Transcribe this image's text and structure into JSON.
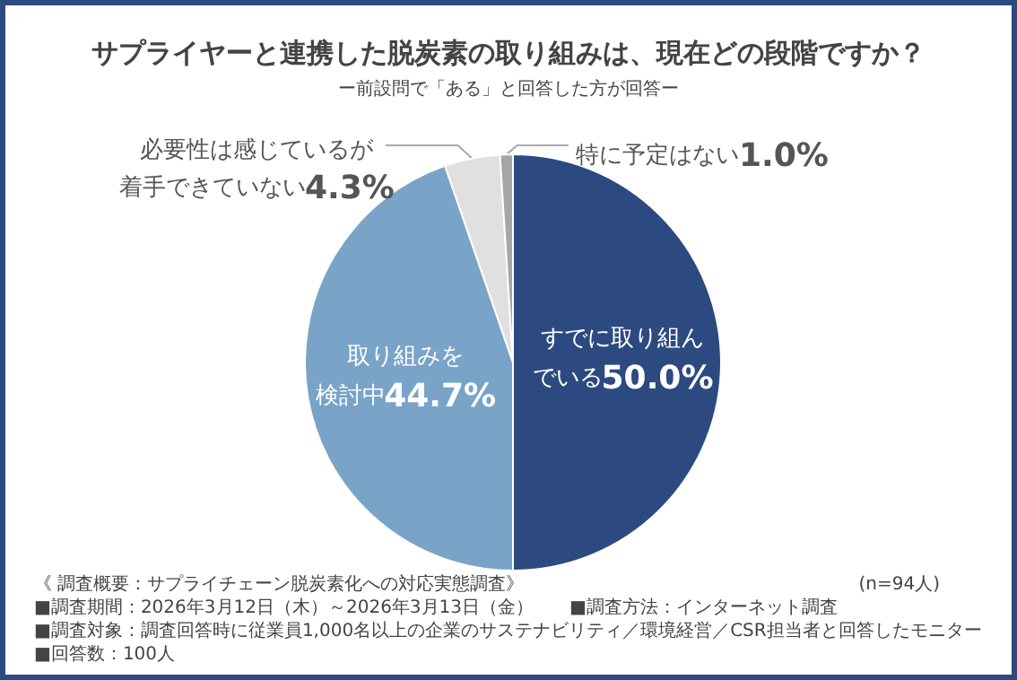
{
  "chart_data": {
    "type": "pie",
    "title": "サプライヤーと連携した脱炭素の取り組みは、現在どの段階ですか？",
    "subtitle": "ー前設問で「ある」と回答した方が回答ー",
    "categories": [
      "すでに取り組んでいる",
      "取り組みを検討中",
      "必要性は感じているが着手できていない",
      "特に予定はない"
    ],
    "values": [
      50.0,
      44.7,
      4.3,
      1.0
    ],
    "colors": [
      "#2d4a80",
      "#7aa3c8",
      "#e0e0e0",
      "#a6a6a6"
    ],
    "value_labels": [
      "50.0%",
      "44.7%",
      "4.3%",
      "1.0%"
    ],
    "legend": false,
    "annotations": [
      "《 調査概要：サプライチェーン脱炭素化への対応実態調査》",
      "■調査期間：2026年3月12日（木）～2026年3月13日（金）　　■調査方法：インターネット調査",
      "■調査対象：調査回答時に従業員1,000名以上の企業のサステナビリティ／環境経営／CSR担当者と回答したモニター",
      "■回答数：100人",
      "(n=94人)"
    ]
  }
}
